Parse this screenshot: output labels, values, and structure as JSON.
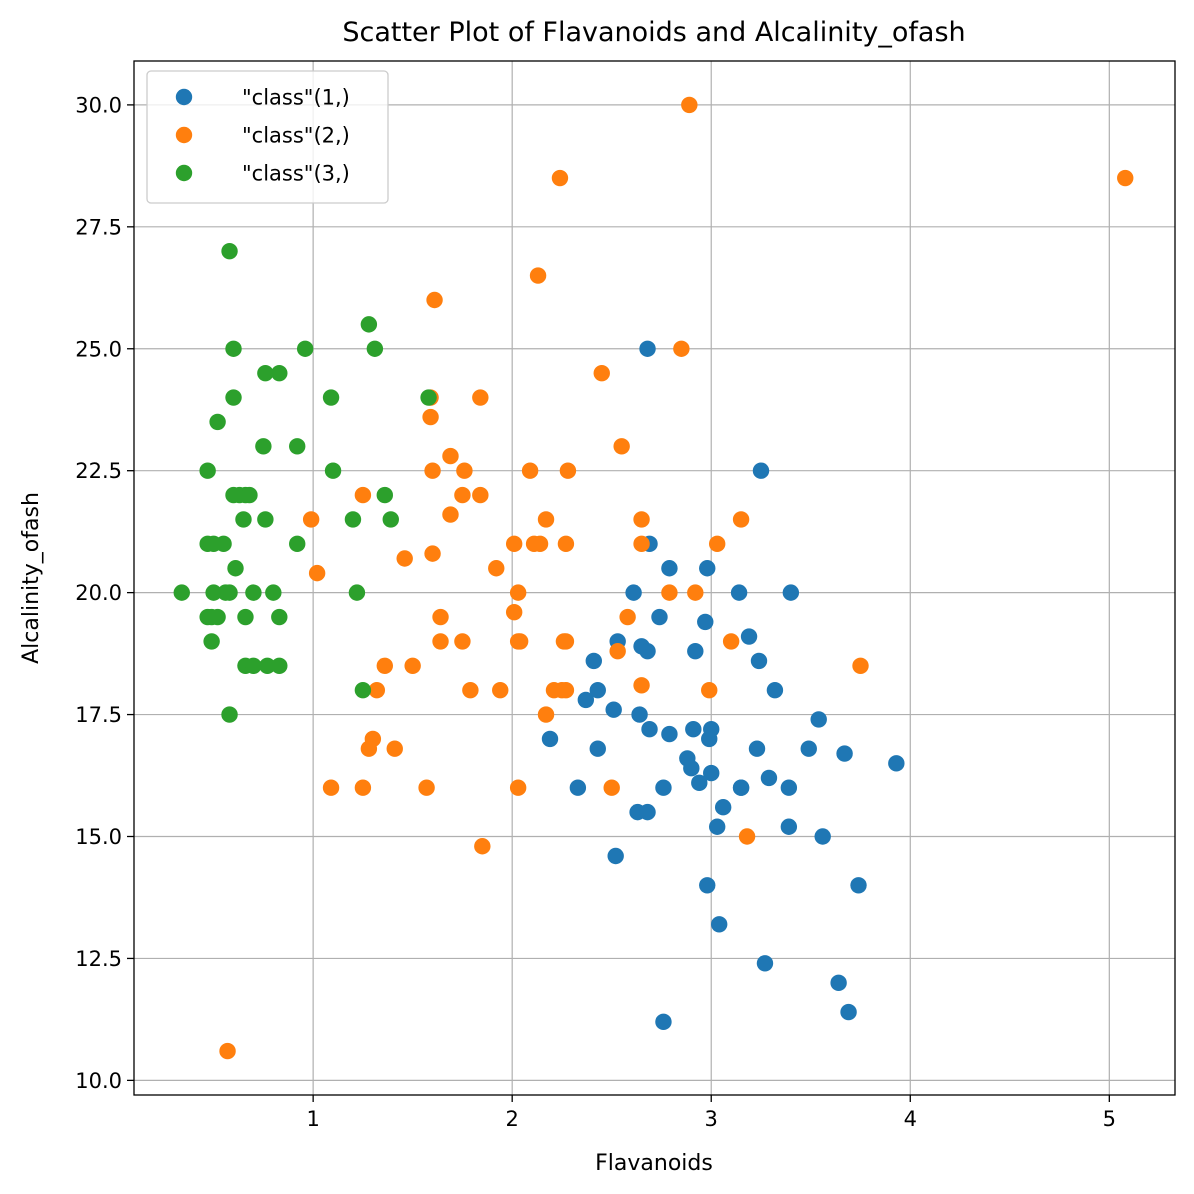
{
  "chart_data": {
    "type": "scatter",
    "title": "Scatter Plot of Flavanoids and Alcalinity_ofash",
    "xlabel": "Flavanoids",
    "ylabel": "Alcalinity_ofash",
    "xlim": [
      0.1,
      5.33
    ],
    "ylim": [
      9.7,
      30.9
    ],
    "xticks": [
      1,
      2,
      3,
      4,
      5
    ],
    "yticks": [
      10.0,
      12.5,
      15.0,
      17.5,
      20.0,
      22.5,
      25.0,
      27.5,
      30.0
    ],
    "xtick_labels": [
      "1",
      "2",
      "3",
      "4",
      "5"
    ],
    "ytick_labels": [
      "10.0",
      "12.5",
      "15.0",
      "17.5",
      "20.0",
      "22.5",
      "25.0",
      "27.5",
      "30.0"
    ],
    "grid": true,
    "legend": "top-left",
    "series": [
      {
        "name": "\"class\"(1,)",
        "color": "#1f77b4",
        "points": [
          [
            3.06,
            15.6
          ],
          [
            2.76,
            11.2
          ],
          [
            3.24,
            18.6
          ],
          [
            3.49,
            16.8
          ],
          [
            2.69,
            21.0
          ],
          [
            3.39,
            15.2
          ],
          [
            2.52,
            14.6
          ],
          [
            2.51,
            17.6
          ],
          [
            2.98,
            14.0
          ],
          [
            3.15,
            16.0
          ],
          [
            3.32,
            18.0
          ],
          [
            2.43,
            16.8
          ],
          [
            2.76,
            16.0
          ],
          [
            3.69,
            11.4
          ],
          [
            3.64,
            12.0
          ],
          [
            2.91,
            17.2
          ],
          [
            3.14,
            20.0
          ],
          [
            3.4,
            20.0
          ],
          [
            2.41,
            18.6
          ],
          [
            2.88,
            16.6
          ],
          [
            2.37,
            17.8
          ],
          [
            2.61,
            20.0
          ],
          [
            2.68,
            25.0
          ],
          [
            2.94,
            16.1
          ],
          [
            2.19,
            17.0
          ],
          [
            2.97,
            19.4
          ],
          [
            2.33,
            16.0
          ],
          [
            3.25,
            22.5
          ],
          [
            3.19,
            19.1
          ],
          [
            2.69,
            17.2
          ],
          [
            2.74,
            19.5
          ],
          [
            2.98,
            20.5
          ],
          [
            2.63,
            15.5
          ],
          [
            3.0,
            16.3
          ],
          [
            3.03,
            15.2
          ],
          [
            2.65,
            18.9
          ],
          [
            3.15,
            16.0
          ],
          [
            2.92,
            18.8
          ],
          [
            2.64,
            17.5
          ],
          [
            2.79,
            20.5
          ],
          [
            2.99,
            17.0
          ],
          [
            3.23,
            16.8
          ],
          [
            3.67,
            16.7
          ],
          [
            3.56,
            15.0
          ],
          [
            3.74,
            14.0
          ],
          [
            2.9,
            16.4
          ],
          [
            2.79,
            17.1
          ],
          [
            3.0,
            17.2
          ],
          [
            3.27,
            12.4
          ],
          [
            3.04,
            13.2
          ],
          [
            3.93,
            16.5
          ],
          [
            3.54,
            17.4
          ],
          [
            3.29,
            16.2
          ],
          [
            3.39,
            16.0
          ],
          [
            2.68,
            18.8
          ],
          [
            2.68,
            15.5
          ],
          [
            2.53,
            19.0
          ],
          [
            2.43,
            18.0
          ]
        ]
      },
      {
        "name": "\"class\"(2,)",
        "color": "#ff7f0e",
        "points": [
          [
            0.57,
            10.6
          ],
          [
            2.89,
            30.0
          ],
          [
            2.24,
            28.5
          ],
          [
            5.08,
            28.5
          ],
          [
            2.13,
            26.5
          ],
          [
            1.61,
            26.0
          ],
          [
            2.85,
            25.0
          ],
          [
            2.45,
            24.5
          ],
          [
            1.59,
            24.0
          ],
          [
            1.84,
            24.0
          ],
          [
            1.59,
            23.6
          ],
          [
            2.55,
            23.0
          ],
          [
            1.69,
            22.8
          ],
          [
            1.6,
            22.5
          ],
          [
            1.76,
            22.5
          ],
          [
            2.09,
            22.5
          ],
          [
            2.28,
            22.5
          ],
          [
            1.25,
            22.0
          ],
          [
            1.75,
            22.0
          ],
          [
            1.84,
            22.0
          ],
          [
            0.99,
            21.5
          ],
          [
            2.17,
            21.5
          ],
          [
            2.65,
            21.5
          ],
          [
            3.15,
            21.5
          ],
          [
            1.69,
            21.6
          ],
          [
            2.01,
            21.0
          ],
          [
            2.11,
            21.0
          ],
          [
            2.14,
            21.0
          ],
          [
            2.27,
            21.0
          ],
          [
            2.65,
            21.0
          ],
          [
            3.03,
            21.0
          ],
          [
            1.6,
            20.8
          ],
          [
            1.46,
            20.7
          ],
          [
            1.92,
            20.5
          ],
          [
            1.02,
            20.4
          ],
          [
            2.03,
            20.0
          ],
          [
            2.79,
            20.0
          ],
          [
            2.92,
            20.0
          ],
          [
            2.01,
            19.6
          ],
          [
            1.64,
            19.5
          ],
          [
            2.58,
            19.5
          ],
          [
            1.64,
            19.0
          ],
          [
            1.75,
            19.0
          ],
          [
            2.03,
            19.0
          ],
          [
            2.04,
            19.0
          ],
          [
            2.26,
            19.0
          ],
          [
            2.27,
            19.0
          ],
          [
            3.1,
            19.0
          ],
          [
            2.53,
            18.8
          ],
          [
            1.36,
            18.5
          ],
          [
            1.5,
            18.5
          ],
          [
            3.75,
            18.5
          ],
          [
            2.65,
            18.1
          ],
          [
            1.32,
            18.0
          ],
          [
            1.79,
            18.0
          ],
          [
            1.94,
            18.0
          ],
          [
            2.21,
            18.0
          ],
          [
            2.25,
            18.0
          ],
          [
            2.27,
            18.0
          ],
          [
            2.99,
            18.0
          ],
          [
            2.17,
            17.5
          ],
          [
            1.3,
            17.0
          ],
          [
            1.28,
            16.8
          ],
          [
            1.41,
            16.8
          ],
          [
            1.09,
            16.0
          ],
          [
            1.25,
            16.0
          ],
          [
            1.57,
            16.0
          ],
          [
            2.03,
            16.0
          ],
          [
            2.5,
            16.0
          ],
          [
            3.18,
            15.0
          ],
          [
            1.85,
            14.8
          ]
        ]
      },
      {
        "name": "\"class\"(3,)",
        "color": "#2ca02c",
        "points": [
          [
            0.58,
            27.0
          ],
          [
            1.28,
            25.5
          ],
          [
            0.6,
            25.0
          ],
          [
            0.96,
            25.0
          ],
          [
            1.31,
            25.0
          ],
          [
            0.76,
            24.5
          ],
          [
            0.83,
            24.5
          ],
          [
            0.6,
            24.0
          ],
          [
            1.09,
            24.0
          ],
          [
            1.58,
            24.0
          ],
          [
            0.52,
            23.5
          ],
          [
            0.75,
            23.0
          ],
          [
            0.92,
            23.0
          ],
          [
            0.47,
            22.5
          ],
          [
            1.1,
            22.5
          ],
          [
            0.6,
            22.0
          ],
          [
            0.63,
            22.0
          ],
          [
            0.66,
            22.0
          ],
          [
            0.68,
            22.0
          ],
          [
            1.36,
            22.0
          ],
          [
            0.65,
            21.5
          ],
          [
            0.76,
            21.5
          ],
          [
            1.2,
            21.5
          ],
          [
            1.39,
            21.5
          ],
          [
            0.47,
            21.0
          ],
          [
            0.5,
            21.0
          ],
          [
            0.55,
            21.0
          ],
          [
            0.92,
            21.0
          ],
          [
            0.61,
            20.5
          ],
          [
            0.34,
            20.0
          ],
          [
            0.5,
            20.0
          ],
          [
            0.56,
            20.0
          ],
          [
            0.58,
            20.0
          ],
          [
            0.7,
            20.0
          ],
          [
            0.8,
            20.0
          ],
          [
            1.22,
            20.0
          ],
          [
            0.47,
            19.5
          ],
          [
            0.49,
            19.5
          ],
          [
            0.52,
            19.5
          ],
          [
            0.66,
            19.5
          ],
          [
            0.83,
            19.5
          ],
          [
            0.49,
            19.0
          ],
          [
            0.66,
            18.5
          ],
          [
            0.7,
            18.5
          ],
          [
            0.77,
            18.5
          ],
          [
            0.83,
            18.5
          ],
          [
            1.25,
            18.0
          ],
          [
            0.58,
            17.5
          ]
        ]
      }
    ]
  }
}
